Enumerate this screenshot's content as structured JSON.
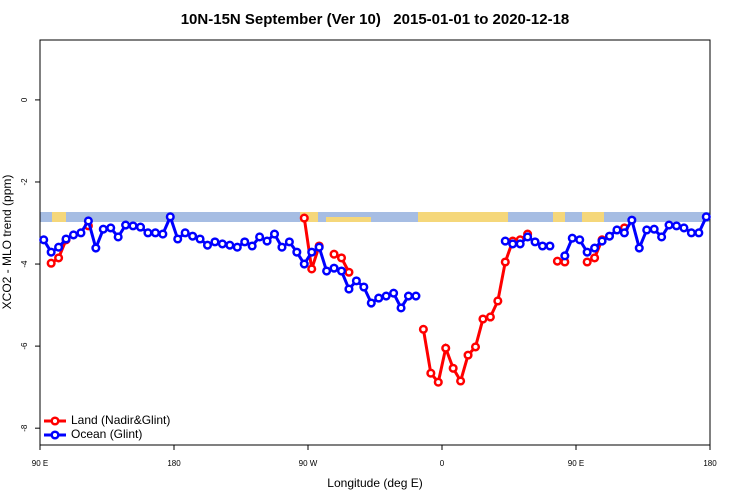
{
  "chart_data": {
    "type": "line",
    "title": "10N-15N September (Ver 10)   2015-01-01 to 2020-12-18",
    "x_label": "Longitude (deg E)",
    "y_label": "XCO2 - MLO trend (ppm)",
    "xlim": [
      90,
      540
    ],
    "ylim": [
      -8.41,
      1.46
    ],
    "xticks": [
      {
        "value": 90,
        "label": "90 E"
      },
      180,
      {
        "value": 270,
        "label": "90 W"
      },
      {
        "value": 360,
        "label": "0"
      },
      {
        "value": 450,
        "label": "90 E"
      },
      {
        "value": 540,
        "label": "180"
      }
    ],
    "yticks": [
      0,
      -2,
      -4,
      -6,
      -8
    ],
    "legend": "bottom-left",
    "x": [
      92.5,
      97.5,
      102.5,
      107.5,
      112.5,
      117.5,
      122.5,
      127.5,
      132.5,
      137.5,
      142.5,
      147.5,
      152.5,
      157.5,
      162.5,
      167.5,
      172.5,
      177.5,
      182.5,
      187.5,
      192.5,
      197.5,
      202.5,
      207.5,
      212.5,
      217.5,
      222.5,
      227.5,
      232.5,
      237.5,
      242.5,
      247.5,
      252.5,
      257.5,
      262.5,
      267.5,
      272.5,
      277.5,
      282.5,
      287.5,
      292.5,
      297.5,
      302.5,
      307.5,
      312.5,
      317.5,
      322.5,
      327.5,
      332.5,
      337.5,
      342.5,
      347.5,
      352.5,
      357.5,
      362.5,
      367.5,
      372.5,
      377.5,
      382.5,
      387.5,
      392.5,
      397.5,
      402.5,
      407.5,
      412.5,
      417.5,
      422.5,
      427.5,
      432.5,
      437.5,
      442.5,
      447.5,
      452.5,
      457.5,
      462.5,
      467.5,
      472.5,
      477.5,
      482.5,
      487.5,
      492.5,
      497.5,
      502.5,
      507.5,
      512.5,
      517.5,
      522.5,
      527.5,
      532.5,
      537.5
    ],
    "series": [
      {
        "name": "Land (Nadir&Glint)",
        "color": "#ff0000",
        "values": [
          null,
          -3.98,
          -3.85,
          -3.41,
          null,
          null,
          -3.07,
          null,
          null,
          null,
          null,
          null,
          null,
          null,
          null,
          null,
          null,
          null,
          null,
          null,
          null,
          null,
          null,
          null,
          null,
          null,
          null,
          null,
          null,
          null,
          null,
          null,
          null,
          null,
          null,
          -2.88,
          -4.12,
          -3.56,
          null,
          -3.76,
          -3.85,
          -4.2,
          null,
          null,
          null,
          null,
          null,
          null,
          null,
          null,
          null,
          -5.59,
          -6.66,
          -6.88,
          -6.05,
          -6.54,
          -6.85,
          -6.22,
          -6.02,
          -5.34,
          -5.29,
          -4.9,
          -3.95,
          -3.44,
          -3.41,
          -3.27,
          null,
          null,
          null,
          -3.93,
          -3.95,
          null,
          null,
          -3.95,
          -3.85,
          -3.41,
          null,
          null,
          -3.12,
          null,
          null,
          null,
          null,
          null,
          null,
          null,
          null,
          null,
          null,
          null
        ]
      },
      {
        "name": "Ocean (Glint)",
        "color": "#0000ff",
        "values": [
          -3.41,
          -3.71,
          -3.59,
          -3.39,
          -3.29,
          -3.24,
          -2.95,
          -3.61,
          -3.15,
          -3.12,
          -3.34,
          -3.05,
          -3.07,
          -3.1,
          -3.24,
          -3.24,
          -3.27,
          -2.85,
          -3.39,
          -3.24,
          -3.32,
          -3.39,
          -3.54,
          -3.46,
          -3.51,
          -3.54,
          -3.59,
          -3.46,
          -3.56,
          -3.34,
          -3.44,
          -3.27,
          -3.59,
          -3.46,
          -3.71,
          -4.0,
          -3.71,
          -3.59,
          -4.17,
          -4.1,
          -4.17,
          -4.61,
          -4.41,
          -4.56,
          -4.95,
          -4.83,
          -4.78,
          -4.71,
          -5.07,
          -4.78,
          -4.78,
          null,
          null,
          null,
          null,
          null,
          null,
          null,
          null,
          null,
          null,
          null,
          -3.44,
          -3.51,
          -3.51,
          -3.34,
          -3.46,
          -3.56,
          -3.56,
          null,
          -3.8,
          -3.37,
          -3.41,
          -3.71,
          -3.61,
          -3.44,
          -3.32,
          -3.17,
          -3.24,
          -2.93,
          -3.61,
          -3.17,
          -3.15,
          -3.34,
          -3.05,
          -3.07,
          -3.12,
          -3.24,
          -3.24,
          -2.85
        ]
      }
    ]
  }
}
